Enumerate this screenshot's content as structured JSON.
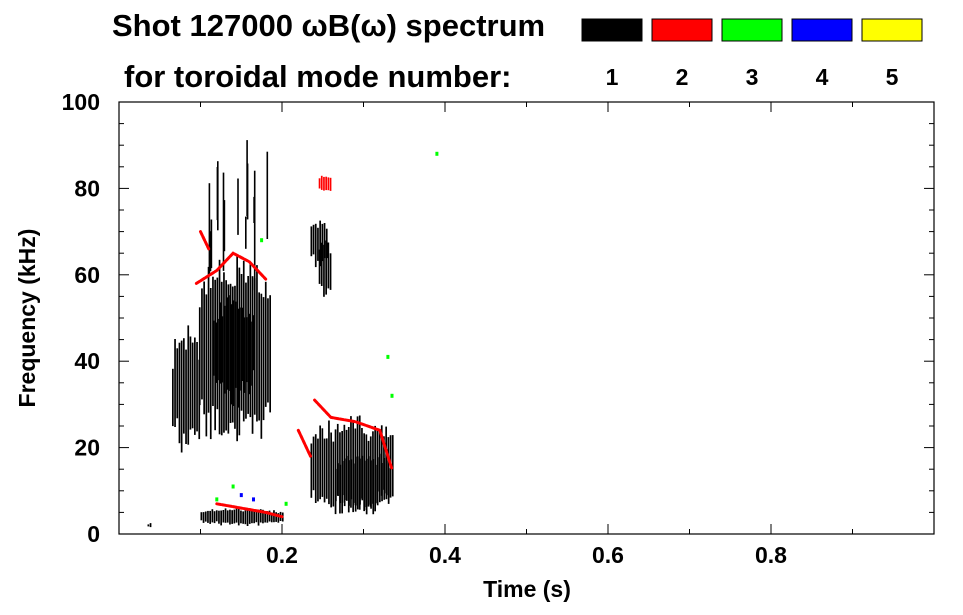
{
  "chart_data": {
    "type": "heatmap",
    "title_line1": "Shot 127000 ωB(ω) spectrum",
    "title_line2": "for toroidal mode number:",
    "xlabel": "Time (s)",
    "ylabel": "Frequency (kHz)",
    "xlim": [
      0.0,
      1.0
    ],
    "ylim": [
      0,
      100
    ],
    "x_ticks": [
      {
        "value": 0.2,
        "label": "0.2"
      },
      {
        "value": 0.4,
        "label": "0.4"
      },
      {
        "value": 0.6,
        "label": "0.6"
      },
      {
        "value": 0.8,
        "label": "0.8"
      }
    ],
    "y_ticks": [
      {
        "value": 0,
        "label": "0"
      },
      {
        "value": 20,
        "label": "20"
      },
      {
        "value": 40,
        "label": "40"
      },
      {
        "value": 60,
        "label": "60"
      },
      {
        "value": 80,
        "label": "80"
      },
      {
        "value": 100,
        "label": "100"
      }
    ],
    "legend": [
      {
        "mode": "1",
        "color": "#000000"
      },
      {
        "mode": "2",
        "color": "#ff0000"
      },
      {
        "mode": "3",
        "color": "#00ff00"
      },
      {
        "mode": "4",
        "color": "#0000ff"
      },
      {
        "mode": "5",
        "color": "#ffff00"
      }
    ],
    "features": [
      {
        "mode": 1,
        "kind": "blob",
        "t": [
          0.065,
          0.098
        ],
        "f": [
          19,
          47
        ]
      },
      {
        "mode": 1,
        "kind": "blob",
        "t": [
          0.098,
          0.185
        ],
        "f": [
          20,
          64
        ]
      },
      {
        "mode": 1,
        "kind": "blob",
        "t": [
          0.115,
          0.165
        ],
        "f": [
          30,
          55
        ]
      },
      {
        "mode": 1,
        "kind": "streaks",
        "t": [
          0.1,
          0.19
        ],
        "f": [
          55,
          95
        ],
        "n": 14
      },
      {
        "mode": 1,
        "kind": "blob",
        "t": [
          0.235,
          0.255
        ],
        "f": [
          62,
          73
        ]
      },
      {
        "mode": 1,
        "kind": "blob",
        "t": [
          0.245,
          0.26
        ],
        "f": [
          55,
          68
        ]
      },
      {
        "mode": 1,
        "kind": "blob",
        "t": [
          0.235,
          0.335
        ],
        "f": [
          4,
          27
        ]
      },
      {
        "mode": 1,
        "kind": "blob",
        "t": [
          0.265,
          0.33
        ],
        "f": [
          5,
          19
        ]
      },
      {
        "mode": 1,
        "kind": "blob",
        "t": [
          0.1,
          0.2
        ],
        "f": [
          2,
          6
        ]
      },
      {
        "mode": 1,
        "kind": "blob",
        "t": [
          0.035,
          0.04
        ],
        "f": [
          1.5,
          2.5
        ]
      },
      {
        "mode": 2,
        "kind": "track",
        "points": [
          [
            0.095,
            58
          ],
          [
            0.12,
            61
          ],
          [
            0.14,
            65
          ],
          [
            0.16,
            63
          ],
          [
            0.18,
            59
          ]
        ]
      },
      {
        "mode": 2,
        "kind": "track",
        "points": [
          [
            0.1,
            70
          ],
          [
            0.11,
            66
          ]
        ]
      },
      {
        "mode": 2,
        "kind": "blob",
        "t": [
          0.245,
          0.26
        ],
        "f": [
          79,
          83
        ]
      },
      {
        "mode": 2,
        "kind": "track",
        "points": [
          [
            0.24,
            31
          ],
          [
            0.26,
            27
          ],
          [
            0.29,
            26
          ],
          [
            0.32,
            24
          ],
          [
            0.335,
            15
          ]
        ]
      },
      {
        "mode": 2,
        "kind": "track",
        "points": [
          [
            0.22,
            24
          ],
          [
            0.235,
            18
          ]
        ]
      },
      {
        "mode": 2,
        "kind": "track",
        "points": [
          [
            0.12,
            7
          ],
          [
            0.15,
            6
          ],
          [
            0.18,
            5
          ],
          [
            0.2,
            4
          ]
        ]
      },
      {
        "mode": 3,
        "kind": "dot",
        "t": 0.175,
        "f": 68
      },
      {
        "mode": 3,
        "kind": "dot",
        "t": 0.12,
        "f": 8
      },
      {
        "mode": 3,
        "kind": "dot",
        "t": 0.14,
        "f": 11
      },
      {
        "mode": 3,
        "kind": "dot",
        "t": 0.205,
        "f": 7
      },
      {
        "mode": 3,
        "kind": "dot",
        "t": 0.33,
        "f": 41
      },
      {
        "mode": 3,
        "kind": "dot",
        "t": 0.335,
        "f": 32
      },
      {
        "mode": 3,
        "kind": "dot",
        "t": 0.39,
        "f": 88
      },
      {
        "mode": 4,
        "kind": "dot",
        "t": 0.15,
        "f": 9
      },
      {
        "mode": 4,
        "kind": "dot",
        "t": 0.165,
        "f": 8
      }
    ]
  }
}
